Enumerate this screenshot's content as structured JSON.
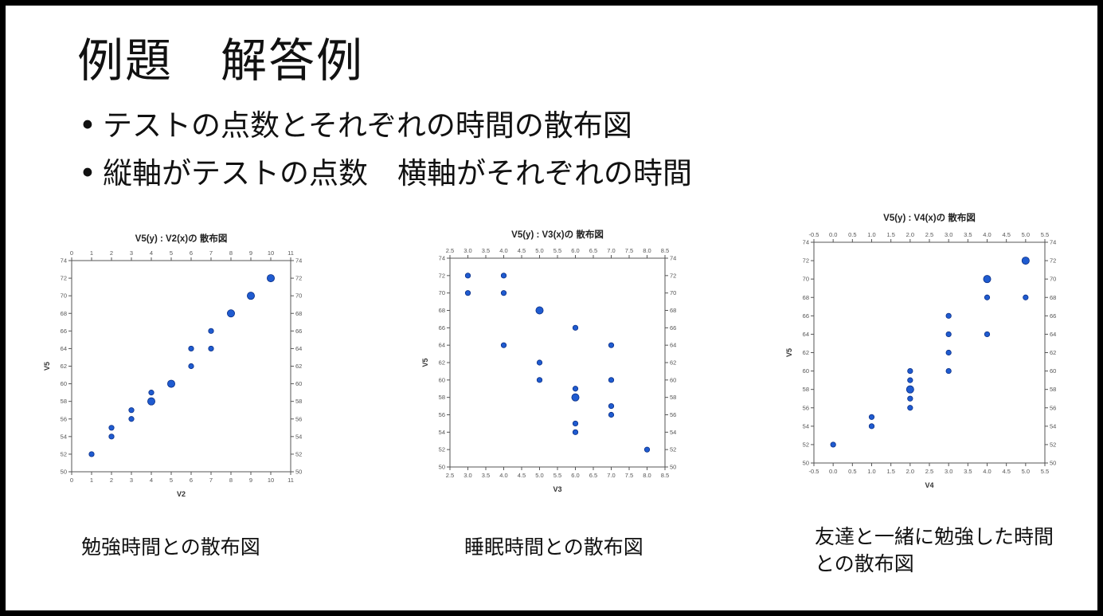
{
  "slide": {
    "title": "例題　解答例",
    "bullets": [
      "テストの点数とそれぞれの時間の散布図",
      "縦軸がテストの点数　横軸がそれぞれの時間"
    ],
    "captions": [
      "勉強時間との散布図",
      "睡眠時間との散布図",
      "友達と一緒に勉強した時間\nとの散布図"
    ],
    "bullet_char": "•"
  },
  "colors": {
    "marker": "#1f5bd0",
    "marker_stroke": "#0b2f86",
    "frame": "#000000",
    "axis": "#555555"
  },
  "chart_data": [
    {
      "type": "scatter",
      "title": "V5(y) : V2(x)の 散布図",
      "xlabel": "V2",
      "ylabel": "V5",
      "xlim": [
        0,
        11
      ],
      "ylim": [
        50,
        74
      ],
      "xticks": [
        0,
        1,
        2,
        3,
        4,
        5,
        6,
        7,
        8,
        9,
        10,
        11
      ],
      "yticks": [
        50,
        52,
        54,
        56,
        58,
        60,
        62,
        64,
        66,
        68,
        70,
        72,
        74
      ],
      "grid": false,
      "points": [
        {
          "x": 1,
          "y": 52,
          "n": 1
        },
        {
          "x": 2,
          "y": 54,
          "n": 1
        },
        {
          "x": 2,
          "y": 55,
          "n": 1
        },
        {
          "x": 3,
          "y": 56,
          "n": 1
        },
        {
          "x": 3,
          "y": 57,
          "n": 1
        },
        {
          "x": 4,
          "y": 58,
          "n": 2
        },
        {
          "x": 4,
          "y": 59,
          "n": 1
        },
        {
          "x": 5,
          "y": 60,
          "n": 2
        },
        {
          "x": 6,
          "y": 62,
          "n": 1
        },
        {
          "x": 6,
          "y": 64,
          "n": 1
        },
        {
          "x": 7,
          "y": 64,
          "n": 1
        },
        {
          "x": 7,
          "y": 66,
          "n": 1
        },
        {
          "x": 8,
          "y": 68,
          "n": 2
        },
        {
          "x": 9,
          "y": 70,
          "n": 2
        },
        {
          "x": 10,
          "y": 72,
          "n": 2
        }
      ]
    },
    {
      "type": "scatter",
      "title": "V5(y) : V3(x)の 散布図",
      "xlabel": "V3",
      "ylabel": "V5",
      "xlim": [
        2.5,
        8.5
      ],
      "ylim": [
        50,
        74
      ],
      "xticks": [
        2.5,
        3.0,
        3.5,
        4.0,
        4.5,
        5.0,
        5.5,
        6.0,
        6.5,
        7.0,
        7.5,
        8.0,
        8.5
      ],
      "yticks": [
        50,
        52,
        54,
        56,
        58,
        60,
        62,
        64,
        66,
        68,
        70,
        72,
        74
      ],
      "grid": false,
      "points": [
        {
          "x": 3,
          "y": 72,
          "n": 1
        },
        {
          "x": 3,
          "y": 70,
          "n": 1
        },
        {
          "x": 4,
          "y": 72,
          "n": 1
        },
        {
          "x": 4,
          "y": 70,
          "n": 1
        },
        {
          "x": 4,
          "y": 64,
          "n": 1
        },
        {
          "x": 5,
          "y": 68,
          "n": 2
        },
        {
          "x": 5,
          "y": 62,
          "n": 1
        },
        {
          "x": 5,
          "y": 60,
          "n": 1
        },
        {
          "x": 6,
          "y": 66,
          "n": 1
        },
        {
          "x": 6,
          "y": 59,
          "n": 1
        },
        {
          "x": 6,
          "y": 58,
          "n": 2
        },
        {
          "x": 6,
          "y": 55,
          "n": 1
        },
        {
          "x": 6,
          "y": 54,
          "n": 1
        },
        {
          "x": 7,
          "y": 64,
          "n": 1
        },
        {
          "x": 7,
          "y": 60,
          "n": 1
        },
        {
          "x": 7,
          "y": 57,
          "n": 1
        },
        {
          "x": 7,
          "y": 56,
          "n": 1
        },
        {
          "x": 8,
          "y": 52,
          "n": 1
        }
      ]
    },
    {
      "type": "scatter",
      "title": "V5(y) : V4(x)の 散布図",
      "xlabel": "V4",
      "ylabel": "V5",
      "xlim": [
        -0.5,
        5.5
      ],
      "ylim": [
        50,
        74
      ],
      "xticks": [
        -0.5,
        0.0,
        0.5,
        1.0,
        1.5,
        2.0,
        2.5,
        3.0,
        3.5,
        4.0,
        4.5,
        5.0,
        5.5
      ],
      "yticks": [
        50,
        52,
        54,
        56,
        58,
        60,
        62,
        64,
        66,
        68,
        70,
        72,
        74
      ],
      "grid": false,
      "points": [
        {
          "x": 0,
          "y": 52,
          "n": 1
        },
        {
          "x": 1,
          "y": 54,
          "n": 1
        },
        {
          "x": 1,
          "y": 55,
          "n": 1
        },
        {
          "x": 2,
          "y": 56,
          "n": 1
        },
        {
          "x": 2,
          "y": 57,
          "n": 1
        },
        {
          "x": 2,
          "y": 58,
          "n": 2
        },
        {
          "x": 2,
          "y": 59,
          "n": 1
        },
        {
          "x": 2,
          "y": 60,
          "n": 1
        },
        {
          "x": 3,
          "y": 60,
          "n": 1
        },
        {
          "x": 3,
          "y": 62,
          "n": 1
        },
        {
          "x": 3,
          "y": 64,
          "n": 1
        },
        {
          "x": 3,
          "y": 66,
          "n": 1
        },
        {
          "x": 4,
          "y": 64,
          "n": 1
        },
        {
          "x": 4,
          "y": 68,
          "n": 1
        },
        {
          "x": 4,
          "y": 70,
          "n": 2
        },
        {
          "x": 5,
          "y": 68,
          "n": 1
        },
        {
          "x": 5,
          "y": 72,
          "n": 2
        }
      ]
    }
  ]
}
